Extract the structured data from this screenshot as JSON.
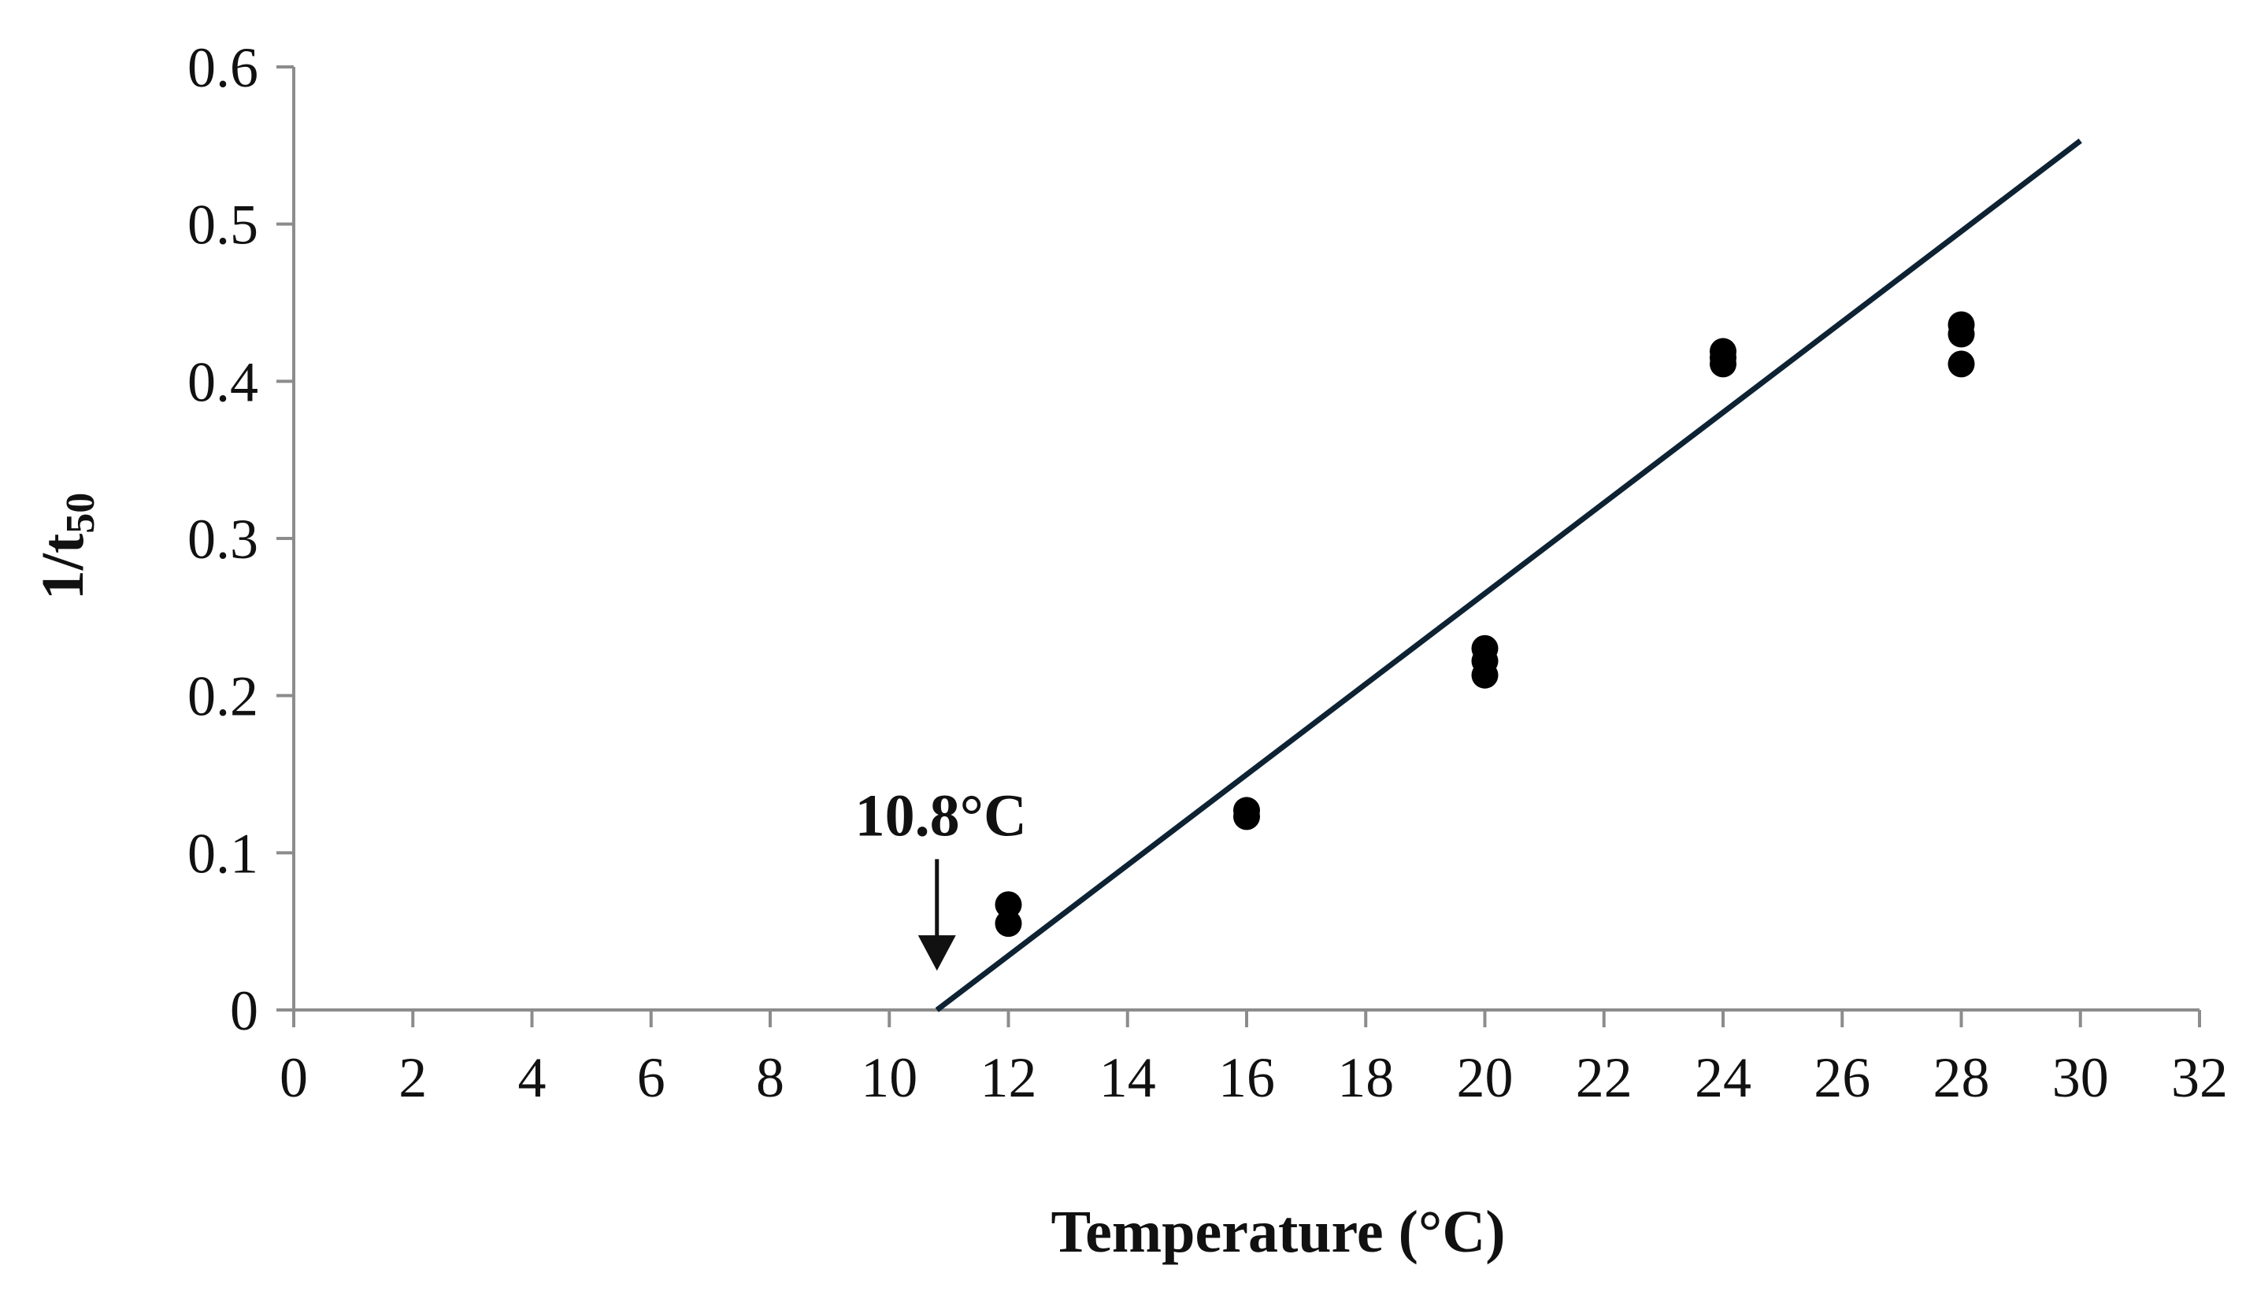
{
  "chart_data": {
    "type": "scatter",
    "title": "",
    "xlabel": "Temperature (°C)",
    "ylabel_main": "1/t",
    "ylabel_sub": "50",
    "xlim": [
      0,
      32
    ],
    "ylim": [
      0,
      0.6
    ],
    "xticks": [
      0,
      2,
      4,
      6,
      8,
      10,
      12,
      14,
      16,
      18,
      20,
      22,
      24,
      26,
      28,
      30,
      32
    ],
    "xtick_labels": [
      "0",
      "2",
      "4",
      "6",
      "8",
      "10",
      "12",
      "14",
      "16",
      "18",
      "20",
      "22",
      "24",
      "26",
      "28",
      "30",
      "32"
    ],
    "yticks": [
      0,
      0.1,
      0.2,
      0.3,
      0.4,
      0.5,
      0.6
    ],
    "ytick_labels": [
      "0",
      "0.1",
      "0.2",
      "0.3",
      "0.4",
      "0.5",
      "0.6"
    ],
    "grid": false,
    "legend": null,
    "series": [
      {
        "name": "observations",
        "points": [
          {
            "x": 12,
            "y": 0.067
          },
          {
            "x": 12,
            "y": 0.055
          },
          {
            "x": 16,
            "y": 0.127
          },
          {
            "x": 16,
            "y": 0.123
          },
          {
            "x": 20,
            "y": 0.23
          },
          {
            "x": 20,
            "y": 0.222
          },
          {
            "x": 20,
            "y": 0.213
          },
          {
            "x": 24,
            "y": 0.419
          },
          {
            "x": 24,
            "y": 0.415
          },
          {
            "x": 24,
            "y": 0.411
          },
          {
            "x": 28,
            "y": 0.436
          },
          {
            "x": 28,
            "y": 0.43
          },
          {
            "x": 28,
            "y": 0.411
          }
        ]
      }
    ],
    "regression_line": {
      "x_start": 10.8,
      "y_start": 0.0,
      "x_end": 30.0,
      "y_end": 0.553,
      "color": "#0d2233"
    },
    "annotation": {
      "text": "10.8°C",
      "x": 10.8,
      "arrow_from_y": 0.096,
      "arrow_to_y": 0.025
    }
  }
}
